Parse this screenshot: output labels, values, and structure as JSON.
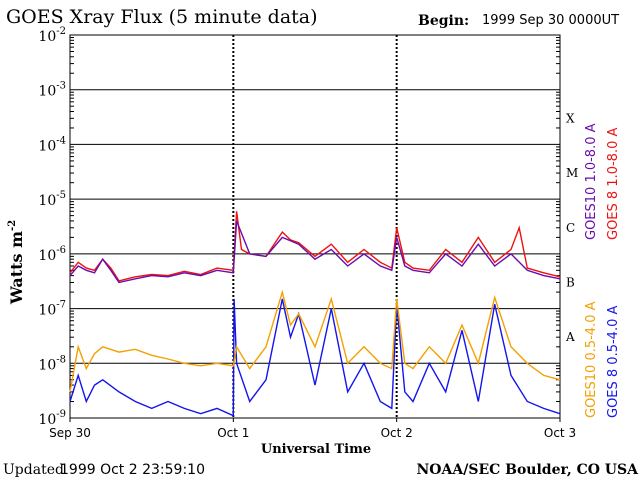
{
  "header": {
    "title": "GOES Xray Flux (5 minute data)",
    "begin_label": "Begin:",
    "begin_value": "1999 Sep 30 0000UT"
  },
  "footer": {
    "updated_label": "Updated",
    "updated_value": "1999 Oct  2 23:59:10",
    "credit": "NOAA/SEC Boulder, CO USA"
  },
  "colors": {
    "goes10_long": "#6a0dad",
    "goes8_long": "#ee1111",
    "goes10_short": "#f4a000",
    "goes8_short": "#1414ee",
    "grid": "#000000"
  },
  "chart_data": {
    "type": "line",
    "ylabel": "Watts m",
    "ylabel_sup": "-2",
    "xlabel": "Universal Time",
    "y_scale": "log",
    "ylim": [
      1e-09,
      0.01
    ],
    "y_ticks": [
      {
        "base": "10",
        "exp": "-2",
        "value": 0.01
      },
      {
        "base": "10",
        "exp": "-3",
        "value": 0.001
      },
      {
        "base": "10",
        "exp": "-4",
        "value": 0.0001
      },
      {
        "base": "10",
        "exp": "-5",
        "value": 1e-05
      },
      {
        "base": "10",
        "exp": "-6",
        "value": 1e-06
      },
      {
        "base": "10",
        "exp": "-7",
        "value": 1e-07
      },
      {
        "base": "10",
        "exp": "-8",
        "value": 1e-08
      },
      {
        "base": "10",
        "exp": "-9",
        "value": 1e-09
      }
    ],
    "x_ticks": [
      {
        "label": "Sep 30",
        "day": 0
      },
      {
        "label": "Oct 1",
        "day": 1
      },
      {
        "label": "Oct 2",
        "day": 2
      },
      {
        "label": "Oct 3",
        "day": 3
      }
    ],
    "xlim_days": [
      0,
      3
    ],
    "flare_classes": [
      {
        "label": "X",
        "value": 0.0003
      },
      {
        "label": "M",
        "value": 3e-05
      },
      {
        "label": "C",
        "value": 3e-06
      },
      {
        "label": "B",
        "value": 3e-07
      },
      {
        "label": "A",
        "value": 3e-08
      }
    ],
    "grid": true,
    "series": [
      {
        "name": "GOES10 1.0-8.0 A",
        "color": "#6a0dad",
        "x": [
          0,
          0.05,
          0.1,
          0.15,
          0.2,
          0.25,
          0.3,
          0.4,
          0.5,
          0.6,
          0.7,
          0.8,
          0.9,
          1.0,
          1.02,
          1.1,
          1.2,
          1.3,
          1.4,
          1.5,
          1.6,
          1.7,
          1.8,
          1.9,
          1.97,
          2.0,
          2.05,
          2.1,
          2.2,
          2.3,
          2.4,
          2.5,
          2.6,
          2.7,
          2.8,
          2.9,
          3.0
        ],
        "y": [
          4e-07,
          6e-07,
          5e-07,
          4.5e-07,
          8e-07,
          5e-07,
          3e-07,
          3.5e-07,
          4e-07,
          3.8e-07,
          4.5e-07,
          4e-07,
          5e-07,
          4.5e-07,
          4e-06,
          1e-06,
          9e-07,
          2e-06,
          1.5e-06,
          8e-07,
          1.2e-06,
          6e-07,
          1e-06,
          6e-07,
          5e-07,
          2e-06,
          6e-07,
          5e-07,
          4.5e-07,
          1e-06,
          6e-07,
          1.5e-06,
          6e-07,
          1e-06,
          5e-07,
          4e-07,
          3.5e-07
        ]
      },
      {
        "name": "GOES 8 1.0-8.0 A",
        "color": "#ee1111",
        "x": [
          0,
          0.05,
          0.1,
          0.15,
          0.2,
          0.25,
          0.3,
          0.4,
          0.5,
          0.6,
          0.7,
          0.8,
          0.9,
          1.0,
          1.02,
          1.05,
          1.1,
          1.2,
          1.3,
          1.35,
          1.4,
          1.5,
          1.6,
          1.7,
          1.8,
          1.9,
          1.97,
          2.0,
          2.05,
          2.1,
          2.2,
          2.3,
          2.4,
          2.5,
          2.6,
          2.7,
          2.75,
          2.8,
          2.9,
          3.0
        ],
        "y": [
          4.5e-07,
          7e-07,
          5.5e-07,
          5e-07,
          8e-07,
          5.5e-07,
          3.2e-07,
          3.8e-07,
          4.2e-07,
          4e-07,
          4.8e-07,
          4.2e-07,
          5.5e-07,
          5e-07,
          6e-06,
          1.2e-06,
          1e-06,
          9e-07,
          2.5e-06,
          1.8e-06,
          1.6e-06,
          9e-07,
          1.5e-06,
          7e-07,
          1.2e-06,
          7e-07,
          5.5e-07,
          3e-06,
          7e-07,
          5.5e-07,
          5e-07,
          1.2e-06,
          7e-07,
          2e-06,
          7e-07,
          1.2e-06,
          3e-06,
          5.5e-07,
          4.5e-07,
          3.8e-07
        ]
      },
      {
        "name": "GOES10 0.5-4.0 A",
        "color": "#f4a000",
        "x": [
          0,
          0.05,
          0.1,
          0.15,
          0.2,
          0.3,
          0.4,
          0.5,
          0.6,
          0.7,
          0.8,
          0.9,
          1.0,
          1.02,
          1.1,
          1.2,
          1.3,
          1.35,
          1.4,
          1.5,
          1.6,
          1.7,
          1.8,
          1.9,
          1.97,
          2.0,
          2.05,
          2.1,
          2.2,
          2.3,
          2.4,
          2.5,
          2.6,
          2.7,
          2.8,
          2.9,
          3.0
        ],
        "y": [
          3e-09,
          2e-08,
          8e-09,
          1.5e-08,
          2e-08,
          1.6e-08,
          1.8e-08,
          1.4e-08,
          1.2e-08,
          1e-08,
          9e-09,
          1e-08,
          9e-09,
          2e-08,
          8e-09,
          2e-08,
          2e-07,
          5e-08,
          8e-08,
          2e-08,
          1.5e-07,
          1e-08,
          2e-08,
          1e-08,
          8e-09,
          1.5e-07,
          1e-08,
          8e-09,
          2e-08,
          1e-08,
          5e-08,
          1e-08,
          1.6e-07,
          2e-08,
          1e-08,
          6e-09,
          5e-09
        ]
      },
      {
        "name": "GOES 8 0.5-4.0 A",
        "color": "#1414ee",
        "x": [
          0,
          0.05,
          0.1,
          0.15,
          0.2,
          0.3,
          0.4,
          0.5,
          0.6,
          0.7,
          0.8,
          0.9,
          1.0,
          1.005,
          1.02,
          1.1,
          1.2,
          1.3,
          1.35,
          1.4,
          1.5,
          1.6,
          1.7,
          1.8,
          1.9,
          1.97,
          2.0,
          2.05,
          2.1,
          2.2,
          2.3,
          2.4,
          2.5,
          2.6,
          2.7,
          2.8,
          2.9,
          3.0
        ],
        "y": [
          2e-09,
          6e-09,
          2e-09,
          4e-09,
          5e-09,
          3e-09,
          2e-09,
          1.5e-09,
          2e-09,
          1.5e-09,
          1.2e-09,
          1.5e-09,
          1.1e-09,
          1.5e-07,
          1e-08,
          2e-09,
          5e-09,
          1.5e-07,
          3e-08,
          8e-08,
          4e-09,
          1e-07,
          3e-09,
          1e-08,
          2e-09,
          1.5e-09,
          1.2e-07,
          3e-09,
          2e-09,
          1e-08,
          3e-09,
          4e-08,
          2e-09,
          1.2e-07,
          6e-09,
          2e-09,
          1.5e-09,
          1.2e-09
        ]
      }
    ]
  }
}
